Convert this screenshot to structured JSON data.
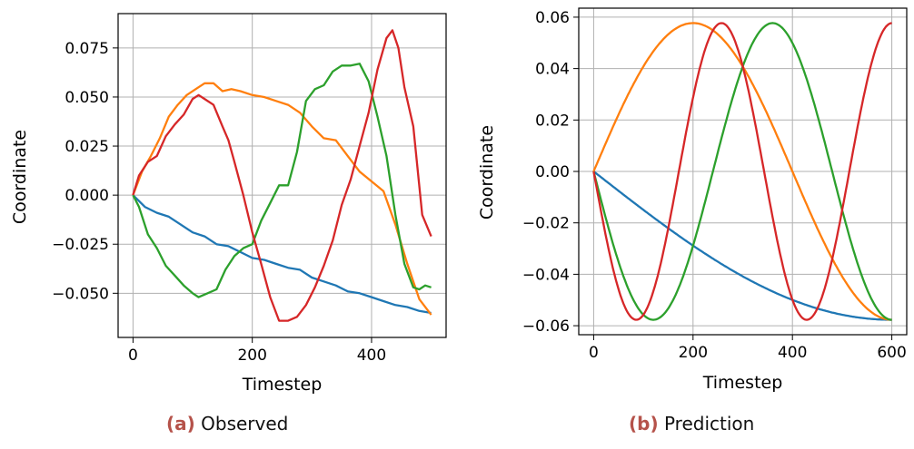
{
  "chart_data": [
    {
      "type": "line",
      "caption_tag": "(a)",
      "caption_text": "Observed",
      "xlabel": "Timestep",
      "ylabel": "Coordinate",
      "xlim": [
        -25,
        525
      ],
      "ylim": [
        -0.0725,
        0.0925
      ],
      "xticks": [
        0,
        200,
        400
      ],
      "yticks": [
        -0.05,
        -0.025,
        0.0,
        0.025,
        0.05,
        0.075
      ],
      "xtick_labels": [
        "0",
        "200",
        "400"
      ],
      "ytick_labels": [
        "−0.050",
        "−0.025",
        "0.000",
        "0.025",
        "0.050",
        "0.075"
      ],
      "grid": true,
      "series": [
        {
          "color": "#1f77b4",
          "x": [
            0,
            20,
            40,
            60,
            80,
            100,
            120,
            140,
            160,
            180,
            200,
            220,
            240,
            260,
            280,
            300,
            320,
            340,
            360,
            380,
            400,
            420,
            440,
            460,
            480,
            500
          ],
          "y": [
            0.0,
            -0.006,
            -0.009,
            -0.011,
            -0.015,
            -0.019,
            -0.021,
            -0.025,
            -0.026,
            -0.029,
            -0.032,
            -0.033,
            -0.035,
            -0.037,
            -0.038,
            -0.042,
            -0.044,
            -0.046,
            -0.049,
            -0.05,
            -0.052,
            -0.054,
            -0.056,
            -0.057,
            -0.059,
            -0.06
          ]
        },
        {
          "color": "#ff7f0e",
          "x": [
            0,
            15,
            30,
            45,
            60,
            75,
            90,
            105,
            120,
            135,
            150,
            165,
            180,
            200,
            220,
            240,
            260,
            280,
            300,
            320,
            340,
            360,
            380,
            400,
            420,
            440,
            460,
            480,
            500
          ],
          "y": [
            0.0,
            0.012,
            0.02,
            0.029,
            0.04,
            0.046,
            0.051,
            0.054,
            0.057,
            0.057,
            0.053,
            0.054,
            0.053,
            0.051,
            0.05,
            0.048,
            0.046,
            0.042,
            0.035,
            0.029,
            0.028,
            0.02,
            0.012,
            0.007,
            0.002,
            -0.015,
            -0.035,
            -0.053,
            -0.061
          ]
        },
        {
          "color": "#2ca02c",
          "x": [
            0,
            10,
            25,
            40,
            55,
            70,
            85,
            100,
            110,
            125,
            140,
            155,
            170,
            185,
            200,
            215,
            230,
            245,
            260,
            275,
            290,
            305,
            320,
            335,
            350,
            365,
            380,
            395,
            410,
            425,
            440,
            455,
            470,
            480,
            490,
            500
          ],
          "y": [
            0.0,
            -0.006,
            -0.02,
            -0.027,
            -0.036,
            -0.041,
            -0.046,
            -0.05,
            -0.052,
            -0.05,
            -0.048,
            -0.038,
            -0.031,
            -0.027,
            -0.025,
            -0.013,
            -0.004,
            0.005,
            0.005,
            0.022,
            0.048,
            0.054,
            0.056,
            0.063,
            0.066,
            0.066,
            0.067,
            0.058,
            0.04,
            0.02,
            -0.01,
            -0.035,
            -0.047,
            -0.048,
            -0.046,
            -0.047
          ]
        },
        {
          "color": "#d62728",
          "x": [
            0,
            10,
            25,
            40,
            55,
            70,
            85,
            100,
            110,
            120,
            135,
            150,
            160,
            170,
            185,
            200,
            215,
            230,
            245,
            260,
            275,
            290,
            305,
            320,
            335,
            350,
            365,
            380,
            395,
            410,
            425,
            435,
            445,
            455,
            470,
            485,
            500
          ],
          "y": [
            0.0,
            0.01,
            0.017,
            0.02,
            0.03,
            0.036,
            0.041,
            0.049,
            0.051,
            0.049,
            0.046,
            0.035,
            0.028,
            0.017,
            0.0,
            -0.019,
            -0.035,
            -0.052,
            -0.064,
            -0.064,
            -0.062,
            -0.056,
            -0.047,
            -0.036,
            -0.023,
            -0.005,
            0.008,
            0.025,
            0.042,
            0.064,
            0.08,
            0.084,
            0.075,
            0.055,
            0.035,
            -0.01,
            -0.021
          ]
        }
      ]
    },
    {
      "type": "line",
      "caption_tag": "(b)",
      "caption_text": "Prediction",
      "xlabel": "Timestep",
      "ylabel": "Coordinate",
      "xlim": [
        -30,
        630
      ],
      "ylim": [
        -0.0635,
        0.0635
      ],
      "xticks": [
        0,
        200,
        400,
        600
      ],
      "yticks": [
        -0.06,
        -0.04,
        -0.02,
        0.0,
        0.02,
        0.04,
        0.06
      ],
      "xtick_labels": [
        "0",
        "200",
        "400",
        "600"
      ],
      "ytick_labels": [
        "−0.06",
        "−0.04",
        "−0.02",
        "0.00",
        "0.02",
        "0.04",
        "0.06"
      ],
      "grid": true,
      "series": [
        {
          "color": "#1f77b4",
          "function": "amplitude*(sin(phase_turns*2π*t/600) − ... )",
          "amplitude": 0.0577,
          "x_range": [
            0,
            600
          ],
          "shape": "-A*sin(pi/2 * t/600)"
        },
        {
          "color": "#ff7f0e",
          "amplitude": 0.0577,
          "x_range": [
            0,
            600
          ],
          "shape": "A*sin(pi*t/400)"
        },
        {
          "color": "#2ca02c",
          "amplitude": 0.0577,
          "x_range": [
            0,
            600
          ],
          "shape": "-A*sin(2*pi*t/480)"
        },
        {
          "color": "#d62728",
          "amplitude": 0.0577,
          "x_range": [
            0,
            600
          ],
          "shape": "-A*sin(2*pi*t/343)"
        }
      ]
    }
  ]
}
